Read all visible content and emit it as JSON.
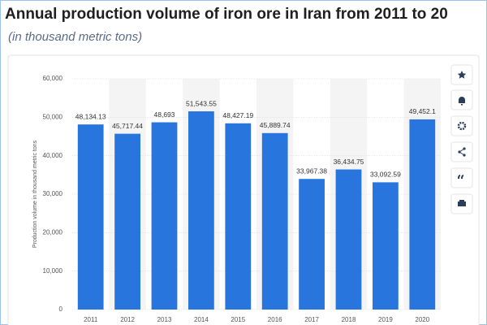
{
  "chart_data": {
    "type": "bar",
    "title": "Annual production volume of iron ore in Iran from 2011 to 20",
    "subtitle": "(in thousand metric tons)",
    "y_label": "Production volume in thousand metric tons",
    "categories": [
      "2011",
      "2012",
      "2013",
      "2014",
      "2015",
      "2016",
      "2017",
      "2018",
      "2019",
      "2020"
    ],
    "values": [
      48134.13,
      45717.44,
      48693,
      51543.55,
      48427.19,
      45889.74,
      33967.38,
      36434.75,
      33092.59,
      49452.1
    ],
    "value_labels": [
      "48,134.13",
      "45,717.44",
      "48,693",
      "51,543.55",
      "48,427.19",
      "45,889.74",
      "33,967.38",
      "36,434.75",
      "33,092.59",
      "49,452.1"
    ],
    "color": "#2876dd",
    "ylim": [
      0,
      60000
    ],
    "yticks": [
      0,
      {
        "value": 10000,
        "label": "10,000"
      },
      {
        "value": 20000,
        "label": "20,000"
      },
      {
        "value": 30000,
        "label": "30,000"
      },
      {
        "value": 40000,
        "label": "40,000"
      },
      {
        "value": 50000,
        "label": "50,000"
      },
      {
        "value": 60000,
        "label": "60,000"
      }
    ],
    "grid": true
  }
}
